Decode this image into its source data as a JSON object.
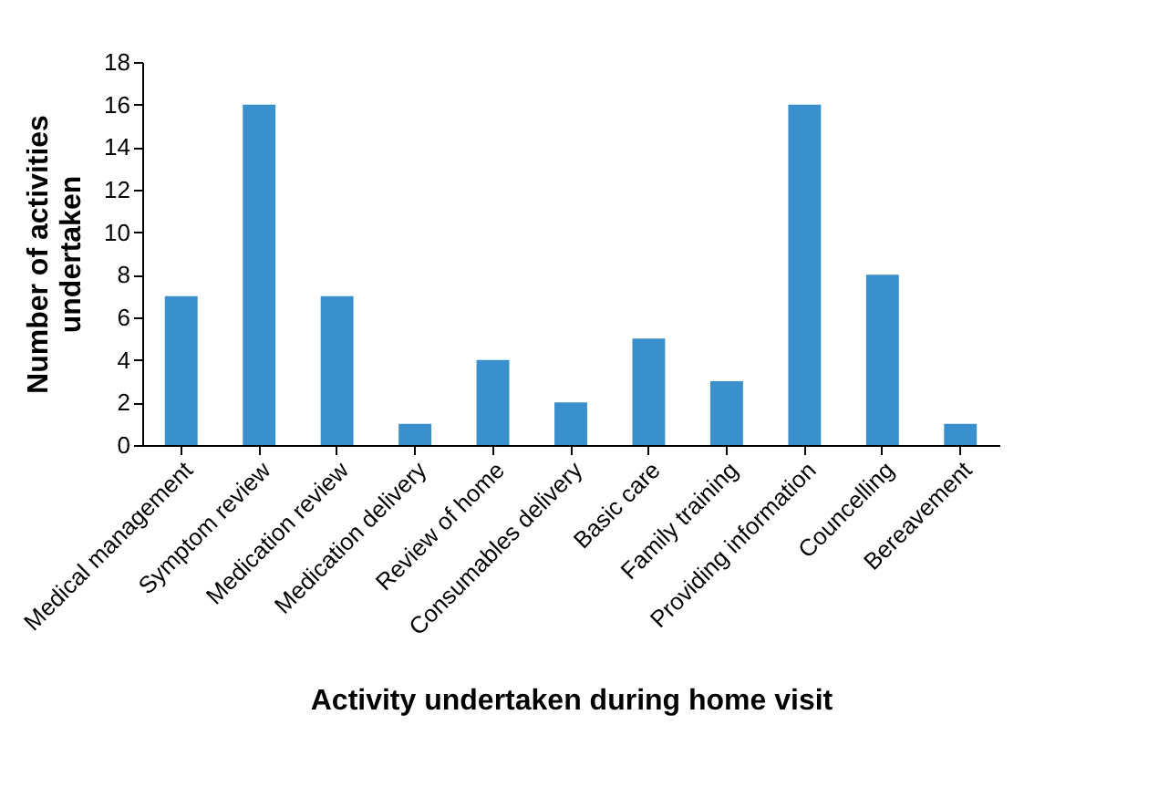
{
  "chart_data": {
    "type": "bar",
    "xlabel": "Activity undertaken during home visit",
    "ylabel": "Number of activities undertaken",
    "categories": [
      "Medical management",
      "Symptom review",
      "Medication review",
      "Medication delivery",
      "Review of home",
      "Consumables delivery",
      "Basic care",
      "Family training",
      "Providing information",
      "Councelling",
      "Bereavement"
    ],
    "values": [
      7,
      16,
      7,
      1,
      4,
      2,
      5,
      3,
      16,
      8,
      1
    ],
    "color": "#3a8fcd",
    "ylim": [
      0,
      18
    ],
    "yticks": [
      0,
      2,
      4,
      6,
      8,
      10,
      12,
      14,
      16,
      18
    ],
    "grid": false
  }
}
